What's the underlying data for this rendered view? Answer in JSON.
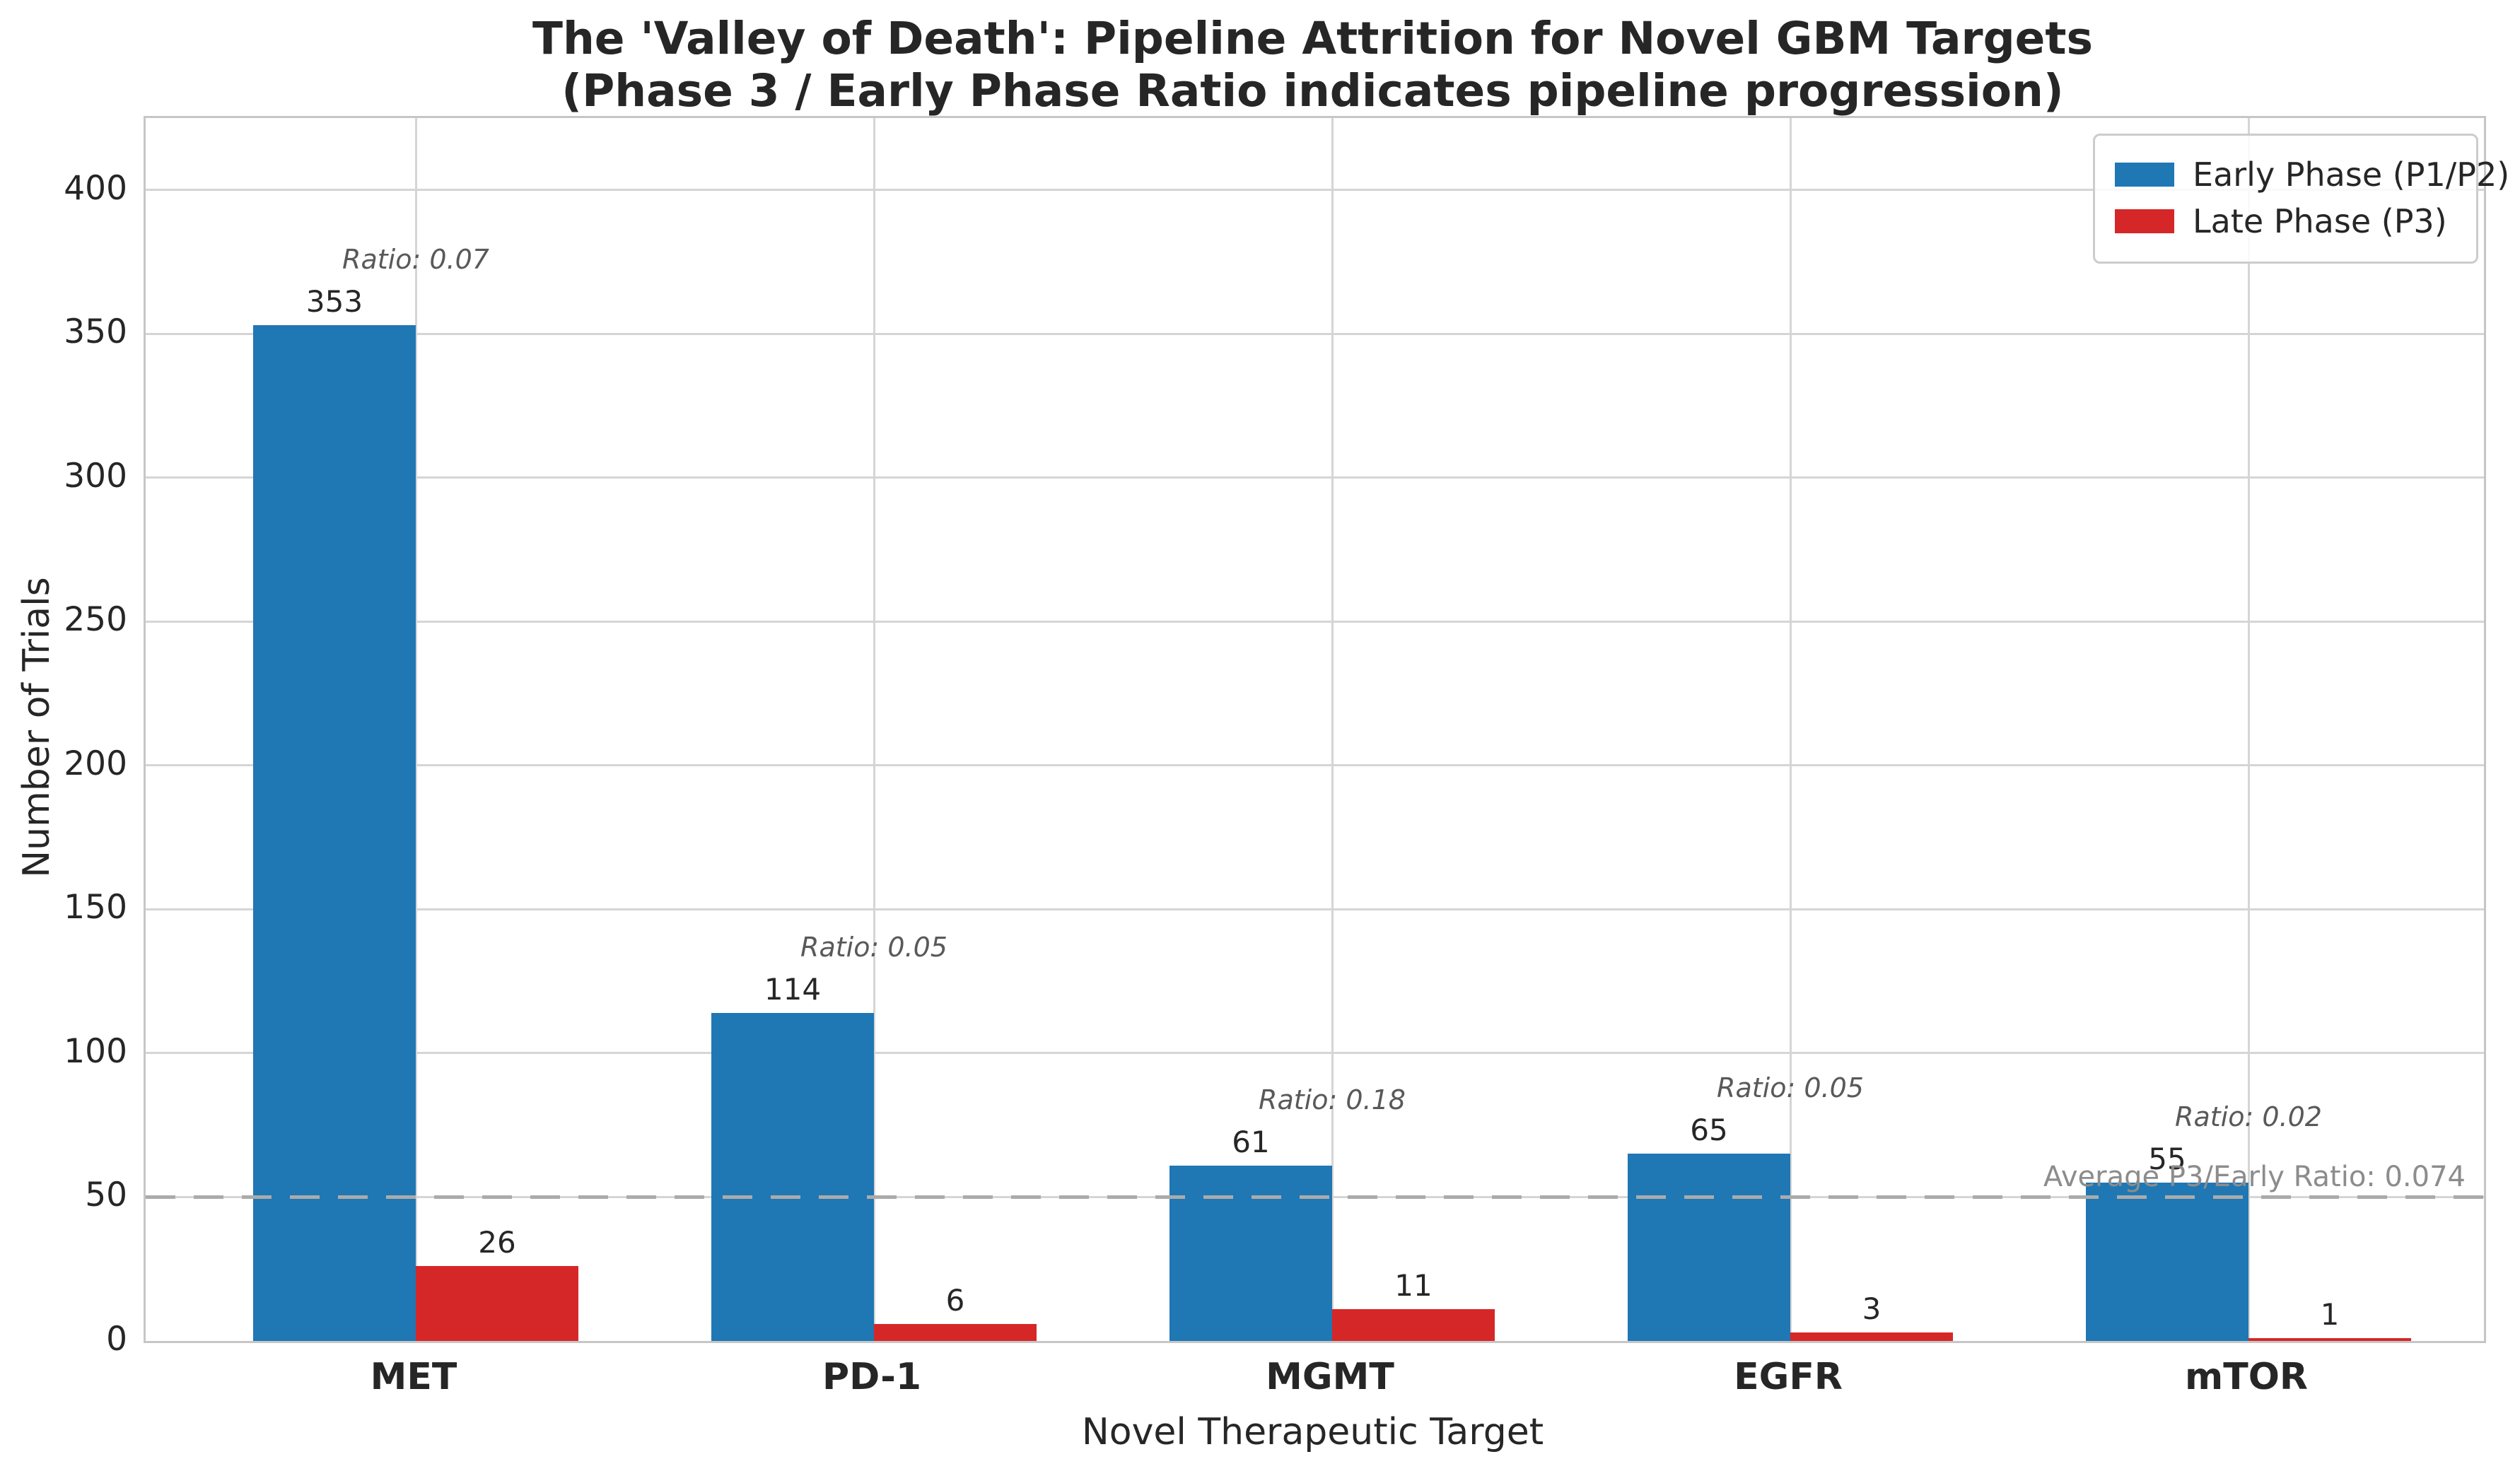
{
  "chart_data": {
    "type": "bar",
    "title": "The 'Valley of Death': Pipeline Attrition for Novel GBM Targets\n(Phase 3 / Early Phase Ratio indicates pipeline progression)",
    "xlabel": "Novel Therapeutic Target",
    "ylabel": "Number of Trials",
    "categories": [
      "MET",
      "PD-1",
      "MGMT",
      "EGFR",
      "mTOR"
    ],
    "series": [
      {
        "name": "Early Phase (P1/P2)",
        "color": "#1f77b4",
        "values": [
          353,
          114,
          61,
          65,
          55
        ]
      },
      {
        "name": "Late Phase (P3)",
        "color": "#d62728",
        "values": [
          26,
          6,
          11,
          3,
          1
        ]
      }
    ],
    "ratio_labels": [
      "Ratio: 0.07",
      "Ratio: 0.05",
      "Ratio: 0.18",
      "Ratio: 0.05",
      "Ratio: 0.02"
    ],
    "avg_line": {
      "value": 50,
      "label": "Average P3/Early Ratio: 0.074"
    },
    "yticks": [
      0,
      50,
      100,
      150,
      200,
      250,
      300,
      350,
      400
    ],
    "ylim": [
      0,
      425
    ],
    "grid": true,
    "legend_position": "upper right",
    "grid_color": "#d5d5d5",
    "text_color": "#262626",
    "annotation_color": "#595959",
    "avg_text_color": "#8c8c8c"
  }
}
